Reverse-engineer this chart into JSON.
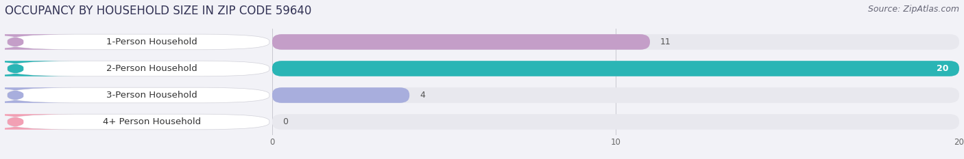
{
  "title": "OCCUPANCY BY HOUSEHOLD SIZE IN ZIP CODE 59640",
  "source": "Source: ZipAtlas.com",
  "categories": [
    "1-Person Household",
    "2-Person Household",
    "3-Person Household",
    "4+ Person Household"
  ],
  "values": [
    11,
    20,
    4,
    0
  ],
  "bar_colors": [
    "#c49ec8",
    "#2ab5b5",
    "#a8aedd",
    "#f2a0b4"
  ],
  "label_bg_color": "#ffffff",
  "bar_bg_color": "#e8e8ee",
  "xlim": [
    0,
    20
  ],
  "xticks": [
    0,
    10,
    20
  ],
  "title_fontsize": 12,
  "source_fontsize": 9,
  "label_fontsize": 9.5,
  "value_fontsize": 9,
  "background_color": "#f2f2f7",
  "bar_row_bg": "#eaeaef"
}
